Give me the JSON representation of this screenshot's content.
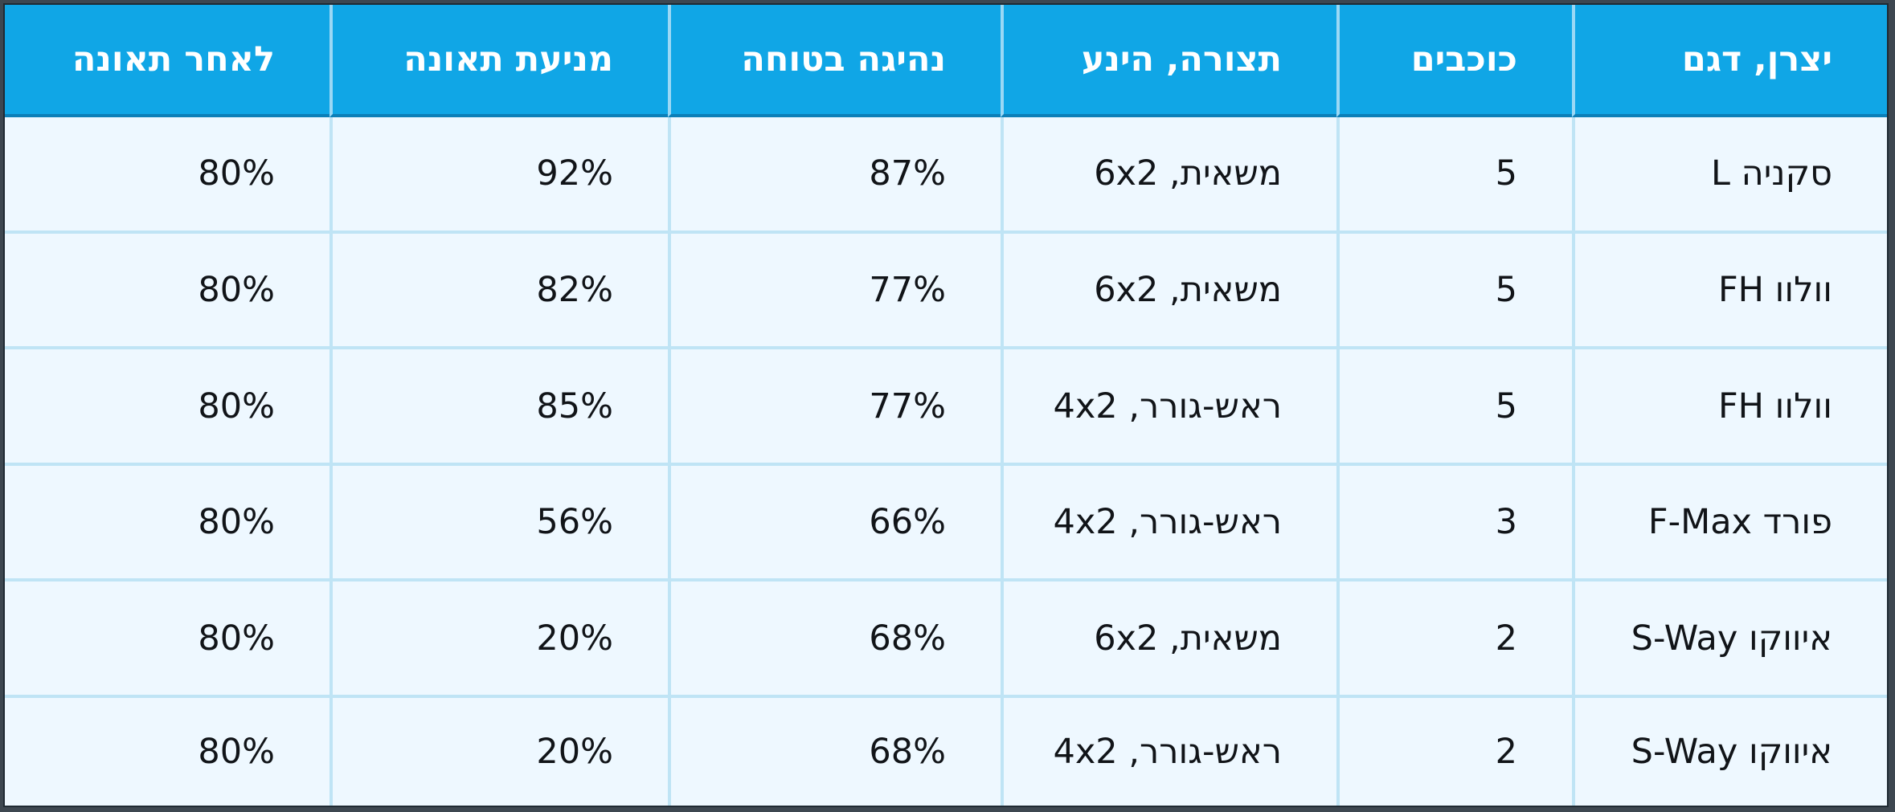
{
  "table": {
    "headers": [
      "יצרן, דגם",
      "כוכבים",
      "תצורה, הינע",
      "נהיגה בטוחה",
      "מניעת תאונה",
      "לאחר תאונה"
    ],
    "rows": [
      [
        "סקניה L",
        "5",
        "משאית, 6x2",
        "87%",
        "92%",
        "80%"
      ],
      [
        "וולוו FH",
        "5",
        "משאית, 6x2",
        "77%",
        "82%",
        "80%"
      ],
      [
        "וולוו FH",
        "5",
        "ראש-גורר, 4x2",
        "77%",
        "85%",
        "80%"
      ],
      [
        "פורד F-Max",
        "3",
        "ראש-גורר, 4x2",
        "66%",
        "56%",
        "80%"
      ],
      [
        "איווקו S-Way",
        "2",
        "משאית, 6x2",
        "68%",
        "20%",
        "80%"
      ],
      [
        "איווקו S-Way",
        "2",
        "ראש-גורר, 4x2",
        "68%",
        "20%",
        "80%"
      ]
    ]
  },
  "colors": {
    "header_background": "#10a6e6",
    "row_background": "#eef8ff",
    "grid_lines": "#bfe4f5",
    "text": "#111418"
  }
}
